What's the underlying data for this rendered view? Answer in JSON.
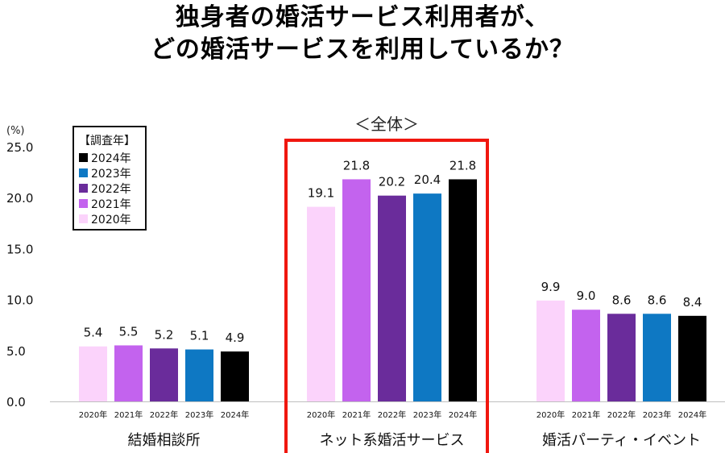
{
  "title_line1": "独身者の婚活サービス利用者が、",
  "title_line2": "どの婚活サービスを利用しているか？",
  "chart_data": {
    "type": "bar",
    "subtitle": "＜全体＞",
    "y_unit": "(%)",
    "ylim": [
      0,
      25
    ],
    "yticks": [
      "0.0",
      "5.0",
      "10.0",
      "15.0",
      "20.0",
      "25.0"
    ],
    "legend_title": "【調査年】",
    "legend_order": [
      "2024年",
      "2023年",
      "2022年",
      "2021年",
      "2020年"
    ],
    "series_colors": {
      "2020年": "#FBD3FB",
      "2021年": "#C363EE",
      "2022年": "#6A2C9B",
      "2023年": "#0E78C3",
      "2024年": "#000000"
    },
    "highlight_color": "#F0170F",
    "highlight_group": "ネット系婚活サービス",
    "groups": [
      {
        "name": "結婚相談所",
        "bars": [
          {
            "year": "2020年",
            "value": 5.4,
            "label": "5.4"
          },
          {
            "year": "2021年",
            "value": 5.5,
            "label": "5.5"
          },
          {
            "year": "2022年",
            "value": 5.2,
            "label": "5.2"
          },
          {
            "year": "2023年",
            "value": 5.1,
            "label": "5.1"
          },
          {
            "year": "2024年",
            "value": 4.9,
            "label": "4.9"
          }
        ]
      },
      {
        "name": "ネット系婚活サービス",
        "bars": [
          {
            "year": "2020年",
            "value": 19.1,
            "label": "19.1"
          },
          {
            "year": "2021年",
            "value": 21.8,
            "label": "21.8"
          },
          {
            "year": "2022年",
            "value": 20.2,
            "label": "20.2"
          },
          {
            "year": "2023年",
            "value": 20.4,
            "label": "20.4"
          },
          {
            "year": "2024年",
            "value": 21.8,
            "label": "21.8"
          }
        ]
      },
      {
        "name": "婚活パーティ・イベント",
        "bars": [
          {
            "year": "2020年",
            "value": 9.9,
            "label": "9.9"
          },
          {
            "year": "2021年",
            "value": 9.0,
            "label": "9.0"
          },
          {
            "year": "2022年",
            "value": 8.6,
            "label": "8.6"
          },
          {
            "year": "2023年",
            "value": 8.6,
            "label": "8.6"
          },
          {
            "year": "2024年",
            "value": 8.4,
            "label": "8.4"
          }
        ]
      }
    ]
  }
}
